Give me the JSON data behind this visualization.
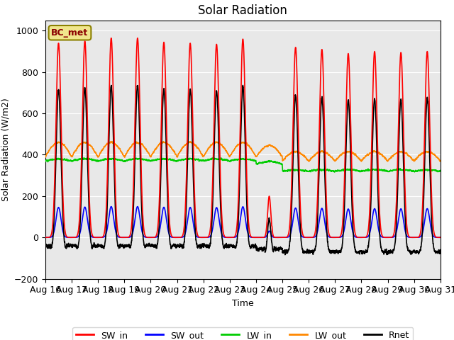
{
  "title": "Solar Radiation",
  "xlabel": "Time",
  "ylabel": "Solar Radiation (W/m2)",
  "ylim": [
    -200,
    1050
  ],
  "bg_color": "#e8e8e8",
  "legend_label": "BC_met",
  "legend_box_color": "#f0e68c",
  "legend_box_edge": "#8B8000",
  "series": {
    "SW_in": {
      "color": "#ff0000",
      "lw": 1.2
    },
    "SW_out": {
      "color": "#0000ff",
      "lw": 1.2
    },
    "LW_in": {
      "color": "#00cc00",
      "lw": 1.2
    },
    "LW_out": {
      "color": "#ff8800",
      "lw": 1.2
    },
    "Rnet": {
      "color": "#000000",
      "lw": 1.2
    }
  },
  "x_tick_labels": [
    "Aug 16",
    "Aug 17",
    "Aug 18",
    "Aug 19",
    "Aug 20",
    "Aug 21",
    "Aug 22",
    "Aug 23",
    "Aug 24",
    "Aug 25",
    "Aug 26",
    "Aug 27",
    "Aug 28",
    "Aug 29",
    "Aug 30",
    "Aug 31"
  ],
  "n_days": 15,
  "pts_per_day": 288
}
